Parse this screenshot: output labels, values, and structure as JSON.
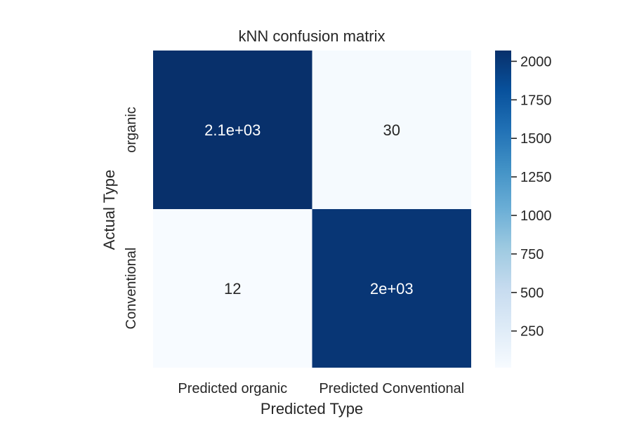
{
  "chart_data": {
    "type": "heatmap",
    "title": "kNN confusion matrix",
    "xlabel": "Predicted Type",
    "ylabel": "Actual Type",
    "x_categories": [
      "Predicted organic",
      "Predicted Conventional"
    ],
    "y_categories": [
      "organic",
      "Conventional"
    ],
    "values": [
      [
        2070,
        30
      ],
      [
        12,
        2020
      ]
    ],
    "cell_labels": [
      [
        "2.1e+03",
        "30"
      ],
      [
        "12",
        "2e+03"
      ]
    ],
    "colormap": "Blues",
    "colorbar": {
      "ticks": [
        250,
        500,
        750,
        1000,
        1250,
        1500,
        1750,
        2000
      ],
      "range": [
        12,
        2070
      ]
    },
    "grid": false,
    "legend": "none"
  },
  "colors": {
    "text": "#262626",
    "colormap_low": "#f7fbff",
    "colormap_high": "#08306b"
  }
}
